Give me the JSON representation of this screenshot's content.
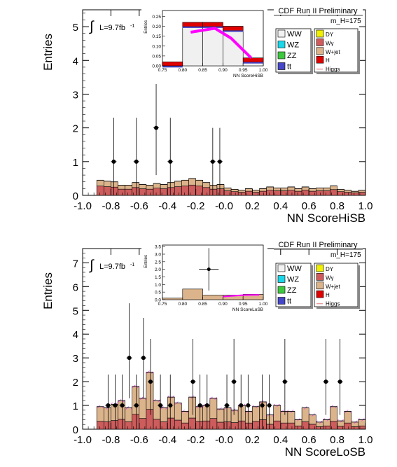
{
  "chart_data": [
    {
      "type": "bar",
      "title": "CDF Run II Preliminary",
      "mass_label": "m_H=175",
      "lumi_label": "L=9.7fb",
      "lumi_exp": "-1",
      "xlabel": "NN ScoreHiSB",
      "ylabel": "Entries",
      "xlim": [
        -1.0,
        1.0
      ],
      "ylim": [
        0,
        5.5
      ],
      "x_ticks": [
        -1.0,
        -0.8,
        -0.6,
        -0.4,
        -0.2,
        0.0,
        0.2,
        0.4,
        0.6,
        0.8,
        1.0
      ],
      "y_ticks": [
        0,
        1,
        2,
        3,
        4,
        5
      ],
      "x_tick_labels": [
        "-1.0",
        "-0.8",
        "-0.6",
        "-0.4",
        "-0.2",
        "-0.0",
        "0.2",
        "0.4",
        "0.6",
        "0.8",
        "1.0"
      ],
      "y_tick_labels": [
        "0",
        "1",
        "2",
        "3",
        "4",
        "5"
      ],
      "legend_col1": [
        {
          "name": "WW",
          "color": "#f2f2f2"
        },
        {
          "name": "WZ",
          "color": "#19d6e8"
        },
        {
          "name": "ZZ",
          "color": "#3fc73f"
        },
        {
          "name": "tt",
          "color": "#4646c8"
        }
      ],
      "legend_col2": [
        {
          "name": "DY",
          "color": "#f0f000"
        },
        {
          "name": "Wγ",
          "color": "#d25a5a"
        },
        {
          "name": "W+jet",
          "color": "#dcb48c"
        },
        {
          "name": "H",
          "color": "#e00000"
        },
        {
          "name": "Higgs",
          "color": "#e07070"
        }
      ],
      "bin_edges": [
        -0.9,
        -0.85,
        -0.8,
        -0.75,
        -0.7,
        -0.65,
        -0.6,
        -0.55,
        -0.5,
        -0.45,
        -0.4,
        -0.35,
        -0.3,
        -0.25,
        -0.2,
        -0.15,
        -0.1,
        -0.05,
        0.0,
        0.05,
        0.1,
        0.15,
        0.2,
        0.25,
        0.3,
        0.35,
        0.4,
        0.45,
        0.5,
        0.55,
        0.6,
        0.65,
        0.7,
        0.75,
        0.8,
        0.85,
        0.9,
        0.95,
        1.0
      ],
      "stack_total": [
        0.45,
        0.42,
        0.4,
        0.3,
        0.3,
        0.38,
        0.32,
        0.3,
        0.35,
        0.32,
        0.38,
        0.42,
        0.45,
        0.5,
        0.45,
        0.38,
        0.3,
        0.32,
        0.22,
        0.18,
        0.15,
        0.2,
        0.15,
        0.2,
        0.25,
        0.22,
        0.22,
        0.25,
        0.2,
        0.25,
        0.2,
        0.22,
        0.22,
        0.28,
        0.18,
        0.15,
        0.12,
        0.15
      ],
      "wjet_fraction": 0.28,
      "data_points": [
        {
          "x": -0.78,
          "y": 1,
          "err": [
            1.0,
            1.3
          ]
        },
        {
          "x": -0.62,
          "y": 1,
          "err": [
            1.0,
            1.3
          ]
        },
        {
          "x": -0.48,
          "y": 2,
          "err": [
            1.4,
            1.8
          ]
        },
        {
          "x": -0.38,
          "y": 1,
          "err": [
            1.0,
            1.3
          ]
        },
        {
          "x": -0.08,
          "y": 1,
          "err": [
            1.0,
            1.0
          ]
        },
        {
          "x": -0.03,
          "y": 1,
          "err": [
            1.0,
            1.0
          ]
        }
      ],
      "inset": {
        "xlabel": "NN ScoreHiSB",
        "ylabel": "Entries",
        "xlim": [
          0.75,
          1.0
        ],
        "ylim": [
          0,
          0.28
        ],
        "x_tick_labels": [
          "0.75",
          "0.80",
          "0.85",
          "0.90",
          "0.95",
          "1.00"
        ],
        "y_tick_labels": [
          "0.00",
          "0.05",
          "0.10",
          "0.15",
          "0.20",
          "0.25"
        ],
        "bins": [
          {
            "x0": 0.75,
            "x1": 0.8,
            "total": 0.02
          },
          {
            "x0": 0.8,
            "x1": 0.85,
            "total": 0.22
          },
          {
            "x0": 0.85,
            "x1": 0.9,
            "total": 0.22
          },
          {
            "x0": 0.9,
            "x1": 0.95,
            "total": 0.2
          },
          {
            "x0": 0.95,
            "x1": 1.0,
            "total": 0.04
          }
        ],
        "higgs_line": [
          [
            0.82,
            0.17
          ],
          [
            0.85,
            0.18
          ],
          [
            0.88,
            0.19
          ],
          [
            0.92,
            0.14
          ],
          [
            0.97,
            0.04
          ]
        ]
      }
    },
    {
      "type": "bar",
      "title": "CDF Run II Preliminary",
      "mass_label": "m_H=175",
      "lumi_label": "L=9.7fb",
      "lumi_exp": "-1",
      "xlabel": "NN ScoreLoSB",
      "ylabel": "Entries",
      "xlim": [
        -1.0,
        1.0
      ],
      "ylim": [
        0,
        7.6
      ],
      "x_ticks": [
        -1.0,
        -0.8,
        -0.6,
        -0.4,
        -0.2,
        0.0,
        0.2,
        0.4,
        0.6,
        0.8,
        1.0
      ],
      "y_ticks": [
        0,
        1,
        2,
        3,
        4,
        5,
        6,
        7
      ],
      "x_tick_labels": [
        "-1.0",
        "-0.8",
        "-0.6",
        "-0.4",
        "-0.2",
        "-0.0",
        "0.2",
        "0.4",
        "0.6",
        "0.8",
        "1.0"
      ],
      "y_tick_labels": [
        "0",
        "1",
        "2",
        "3",
        "4",
        "5",
        "6",
        "7"
      ],
      "legend_col1": [
        {
          "name": "WW",
          "color": "#f2f2f2"
        },
        {
          "name": "WZ",
          "color": "#19d6e8"
        },
        {
          "name": "ZZ",
          "color": "#3fc73f"
        },
        {
          "name": "tt",
          "color": "#4646c8"
        }
      ],
      "legend_col2": [
        {
          "name": "DY",
          "color": "#f0f000"
        },
        {
          "name": "Wγ",
          "color": "#d25a5a"
        },
        {
          "name": "W+jet",
          "color": "#dcb48c"
        },
        {
          "name": "H",
          "color": "#e00000"
        },
        {
          "name": "Higgs",
          "color": "#e07070"
        }
      ],
      "bin_edges": [
        -0.9,
        -0.85,
        -0.8,
        -0.75,
        -0.7,
        -0.65,
        -0.6,
        -0.55,
        -0.5,
        -0.45,
        -0.4,
        -0.35,
        -0.3,
        -0.25,
        -0.2,
        -0.15,
        -0.1,
        -0.05,
        0.0,
        0.05,
        0.1,
        0.15,
        0.2,
        0.25,
        0.3,
        0.35,
        0.4,
        0.45,
        0.5,
        0.55,
        0.6,
        0.65,
        0.7,
        0.75,
        0.8,
        0.85,
        0.9,
        0.95,
        1.0
      ],
      "stack_total": [
        0.95,
        0.9,
        1.05,
        1.2,
        0.9,
        1.8,
        1.3,
        2.4,
        1.2,
        0.9,
        1.35,
        1.1,
        0.75,
        1.35,
        0.95,
        1.0,
        1.3,
        0.85,
        0.9,
        0.8,
        1.0,
        0.75,
        0.95,
        1.15,
        0.6,
        1.0,
        0.75,
        0.75,
        0.4,
        0.9,
        0.6,
        0.3,
        0.4,
        0.95,
        0.35,
        0.75,
        0.3,
        0.4
      ],
      "wjet_fraction": 0.42,
      "data_points": [
        {
          "x": -0.82,
          "y": 1,
          "err": [
            1.0,
            1.3
          ]
        },
        {
          "x": -0.77,
          "y": 1,
          "err": [
            1.0,
            1.3
          ]
        },
        {
          "x": -0.72,
          "y": 1,
          "err": [
            1.0,
            1.3
          ]
        },
        {
          "x": -0.67,
          "y": 3,
          "err": [
            1.7,
            2.3
          ]
        },
        {
          "x": -0.62,
          "y": 1,
          "err": [
            1.0,
            1.3
          ]
        },
        {
          "x": -0.57,
          "y": 3,
          "err": [
            1.7,
            2.3
          ]
        },
        {
          "x": -0.52,
          "y": 2,
          "err": [
            1.4,
            1.8
          ]
        },
        {
          "x": -0.45,
          "y": 1,
          "err": [
            1.0,
            1.3
          ]
        },
        {
          "x": -0.38,
          "y": 1,
          "err": [
            1.0,
            1.3
          ]
        },
        {
          "x": -0.22,
          "y": 2,
          "err": [
            1.4,
            1.8
          ]
        },
        {
          "x": -0.17,
          "y": 1,
          "err": [
            1.0,
            1.3
          ]
        },
        {
          "x": -0.12,
          "y": 1,
          "err": [
            1.0,
            1.3
          ]
        },
        {
          "x": 0.02,
          "y": 1,
          "err": [
            1.0,
            1.3
          ]
        },
        {
          "x": 0.07,
          "y": 2,
          "err": [
            1.4,
            1.8
          ]
        },
        {
          "x": 0.12,
          "y": 1,
          "err": [
            1.0,
            1.3
          ]
        },
        {
          "x": 0.17,
          "y": 1,
          "err": [
            1.0,
            1.3
          ]
        },
        {
          "x": 0.27,
          "y": 1,
          "err": [
            1.0,
            1.3
          ]
        },
        {
          "x": 0.32,
          "y": 1,
          "err": [
            1.0,
            1.3
          ]
        },
        {
          "x": 0.43,
          "y": 2,
          "err": [
            1.4,
            1.8
          ]
        },
        {
          "x": 0.72,
          "y": 2,
          "err": [
            1.4,
            1.8
          ]
        },
        {
          "x": 0.82,
          "y": 2,
          "err": [
            1.4,
            1.8
          ]
        }
      ],
      "inset": {
        "xlabel": "NN ScoreLoSB",
        "ylabel": "Entries",
        "xlim": [
          0.75,
          1.0
        ],
        "ylim": [
          0,
          3.6
        ],
        "x_tick_labels": [
          "0.75",
          "0.80",
          "0.85",
          "0.90",
          "0.95",
          "1.00"
        ],
        "y_tick_labels": [
          "0.0",
          "0.5",
          "1.0",
          "1.5",
          "2.0",
          "2.5",
          "3.0",
          "3.5"
        ],
        "bins": [
          {
            "x0": 0.75,
            "x1": 0.8,
            "total": 0.1
          },
          {
            "x0": 0.8,
            "x1": 0.85,
            "total": 0.7
          },
          {
            "x0": 0.85,
            "x1": 0.9,
            "total": 0.3
          },
          {
            "x0": 0.9,
            "x1": 0.95,
            "total": 0.3
          },
          {
            "x0": 0.95,
            "x1": 1.0,
            "total": 0.35
          }
        ],
        "higgs_line": [
          [
            0.9,
            0.2
          ],
          [
            0.95,
            0.3
          ],
          [
            0.99,
            0.32
          ]
        ],
        "data_points": [
          {
            "x": 0.865,
            "y": 2,
            "err": [
              1.4,
              1.4
            ]
          }
        ]
      }
    }
  ]
}
